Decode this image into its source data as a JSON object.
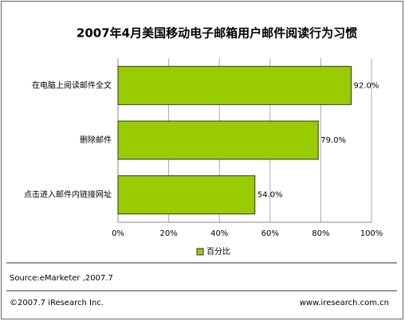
{
  "chart_data": {
    "type": "bar",
    "orientation": "horizontal",
    "title": "2007年4月美国移动电子邮箱用户邮件阅读行为习惯",
    "categories": [
      "在电脑上阅读邮件全文",
      "删除邮件",
      "点击进入邮件内链接网址"
    ],
    "series": [
      {
        "name": "百分比",
        "color": "#99cc00",
        "values": [
          92.0,
          79.0,
          54.0
        ],
        "value_labels": [
          "92.0%",
          "79.0%",
          "54.0%"
        ]
      }
    ],
    "xlim": [
      0,
      100
    ],
    "xticks": [
      {
        "value": 0,
        "label": "0%"
      },
      {
        "value": 20,
        "label": "20%"
      },
      {
        "value": 40,
        "label": "40%"
      },
      {
        "value": 60,
        "label": "60%"
      },
      {
        "value": 80,
        "label": "80%"
      },
      {
        "value": 100,
        "label": "100%"
      }
    ],
    "grid": true,
    "source": "Source:eMarketer ,2007.7",
    "copyright": "©2007.7 iResearch Inc.",
    "website": "www.iresearch.com.cn"
  }
}
